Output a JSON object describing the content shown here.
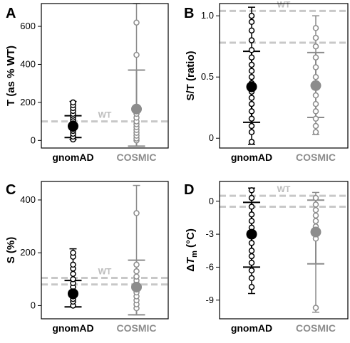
{
  "colors": {
    "gnomad": "#000000",
    "cosmic": "#8c8c8c",
    "wt_line": "#c8c8c8",
    "cosmic_label": "#8c8c8c",
    "wt_label": "#bdbdbd"
  },
  "chart_data": [
    {
      "type": "scatter",
      "panel": "A",
      "ylabel": "T (as % WT)",
      "ylim": [
        -40,
        720
      ],
      "yticks": [
        0,
        200,
        400,
        600
      ],
      "categories": [
        "gnomAD",
        "COSMIC"
      ],
      "reference": {
        "label": "WT",
        "values": [
          100
        ]
      },
      "series": [
        {
          "name": "gnomAD",
          "mean": 75,
          "sd_lower": 15,
          "sd_upper": 130,
          "range_lower": 5,
          "range_upper": 205,
          "points": [
            5,
            20,
            35,
            50,
            60,
            70,
            80,
            90,
            100,
            110,
            120,
            130,
            140,
            155,
            170,
            185,
            200
          ]
        },
        {
          "name": "COSMIC",
          "mean": 165,
          "sd_lower": -30,
          "sd_upper": 370,
          "range_lower": -30,
          "range_upper": 720,
          "points": [
            0,
            10,
            25,
            40,
            55,
            70,
            85,
            100,
            120,
            140,
            160,
            175,
            450,
            620
          ]
        }
      ]
    },
    {
      "type": "scatter",
      "panel": "B",
      "ylabel": "S/T (ratio)",
      "ylim": [
        -0.08,
        1.1
      ],
      "yticks": [
        0,
        0.5,
        1.0
      ],
      "yticklabels": [
        "0",
        "0.5",
        "1.0"
      ],
      "categories": [
        "gnomAD",
        "COSMIC"
      ],
      "reference": {
        "label": "WT",
        "values": [
          0.78,
          1.04
        ]
      },
      "series": [
        {
          "name": "gnomAD",
          "mean": 0.42,
          "sd_lower": 0.13,
          "sd_upper": 0.71,
          "range_lower": -0.05,
          "range_upper": 1.07,
          "points": [
            -0.03,
            0.05,
            0.1,
            0.16,
            0.22,
            0.28,
            0.33,
            0.38,
            0.45,
            0.5,
            0.55,
            0.6,
            0.66,
            0.72,
            0.8,
            0.88,
            0.95,
            1.0
          ]
        },
        {
          "name": "COSMIC",
          "mean": 0.43,
          "sd_lower": 0.17,
          "sd_upper": 0.7,
          "range_lower": 0.03,
          "range_upper": 1.0,
          "points": [
            0.05,
            0.1,
            0.16,
            0.22,
            0.28,
            0.35,
            0.42,
            0.5,
            0.58,
            0.66,
            0.75,
            0.82,
            0.9
          ]
        }
      ]
    },
    {
      "type": "scatter",
      "panel": "C",
      "ylabel": "S (%)",
      "ylim": [
        -50,
        470
      ],
      "yticks": [
        0,
        200,
        400
      ],
      "categories": [
        "gnomAD",
        "COSMIC"
      ],
      "reference": {
        "label": "WT",
        "values": [
          80,
          105
        ]
      },
      "series": [
        {
          "name": "gnomAD",
          "mean": 45,
          "sd_lower": -5,
          "sd_upper": 95,
          "range_lower": -5,
          "range_upper": 215,
          "points": [
            0,
            15,
            25,
            35,
            45,
            55,
            70,
            85,
            100,
            120,
            140,
            155,
            185,
            200
          ]
        },
        {
          "name": "COSMIC",
          "mean": 70,
          "sd_lower": -35,
          "sd_upper": 172,
          "range_lower": -35,
          "range_upper": 455,
          "points": [
            -10,
            5,
            20,
            35,
            50,
            65,
            80,
            95,
            110,
            130,
            155,
            350
          ]
        }
      ]
    },
    {
      "type": "scatter",
      "panel": "D",
      "ylabel": "ΔTm (°C)",
      "ylim": [
        -10.7,
        1.8
      ],
      "yticks": [
        0,
        -3,
        -6,
        -9
      ],
      "categories": [
        "gnomAD",
        "COSMIC"
      ],
      "reference": {
        "label": "WT",
        "values": [
          0.5,
          -0.5
        ]
      },
      "series": [
        {
          "name": "gnomAD",
          "mean": -3.0,
          "sd_lower": -6.0,
          "sd_upper": -0.1,
          "range_lower": -8.4,
          "range_upper": 1.2,
          "points": [
            1.0,
            0.3,
            -0.5,
            -1.2,
            -1.8,
            -2.4,
            -3.2,
            -3.8,
            -4.5,
            -5.0,
            -5.6,
            -6.3,
            -7.0,
            -7.8
          ]
        },
        {
          "name": "COSMIC",
          "mean": -2.8,
          "sd_lower": -5.7,
          "sd_upper": 0.1,
          "range_lower": -10.1,
          "range_upper": 0.8,
          "points": [
            0.3,
            -0.3,
            -0.8,
            -1.3,
            -1.8,
            -2.3,
            -2.9,
            -3.4,
            -9.7
          ]
        }
      ]
    }
  ]
}
